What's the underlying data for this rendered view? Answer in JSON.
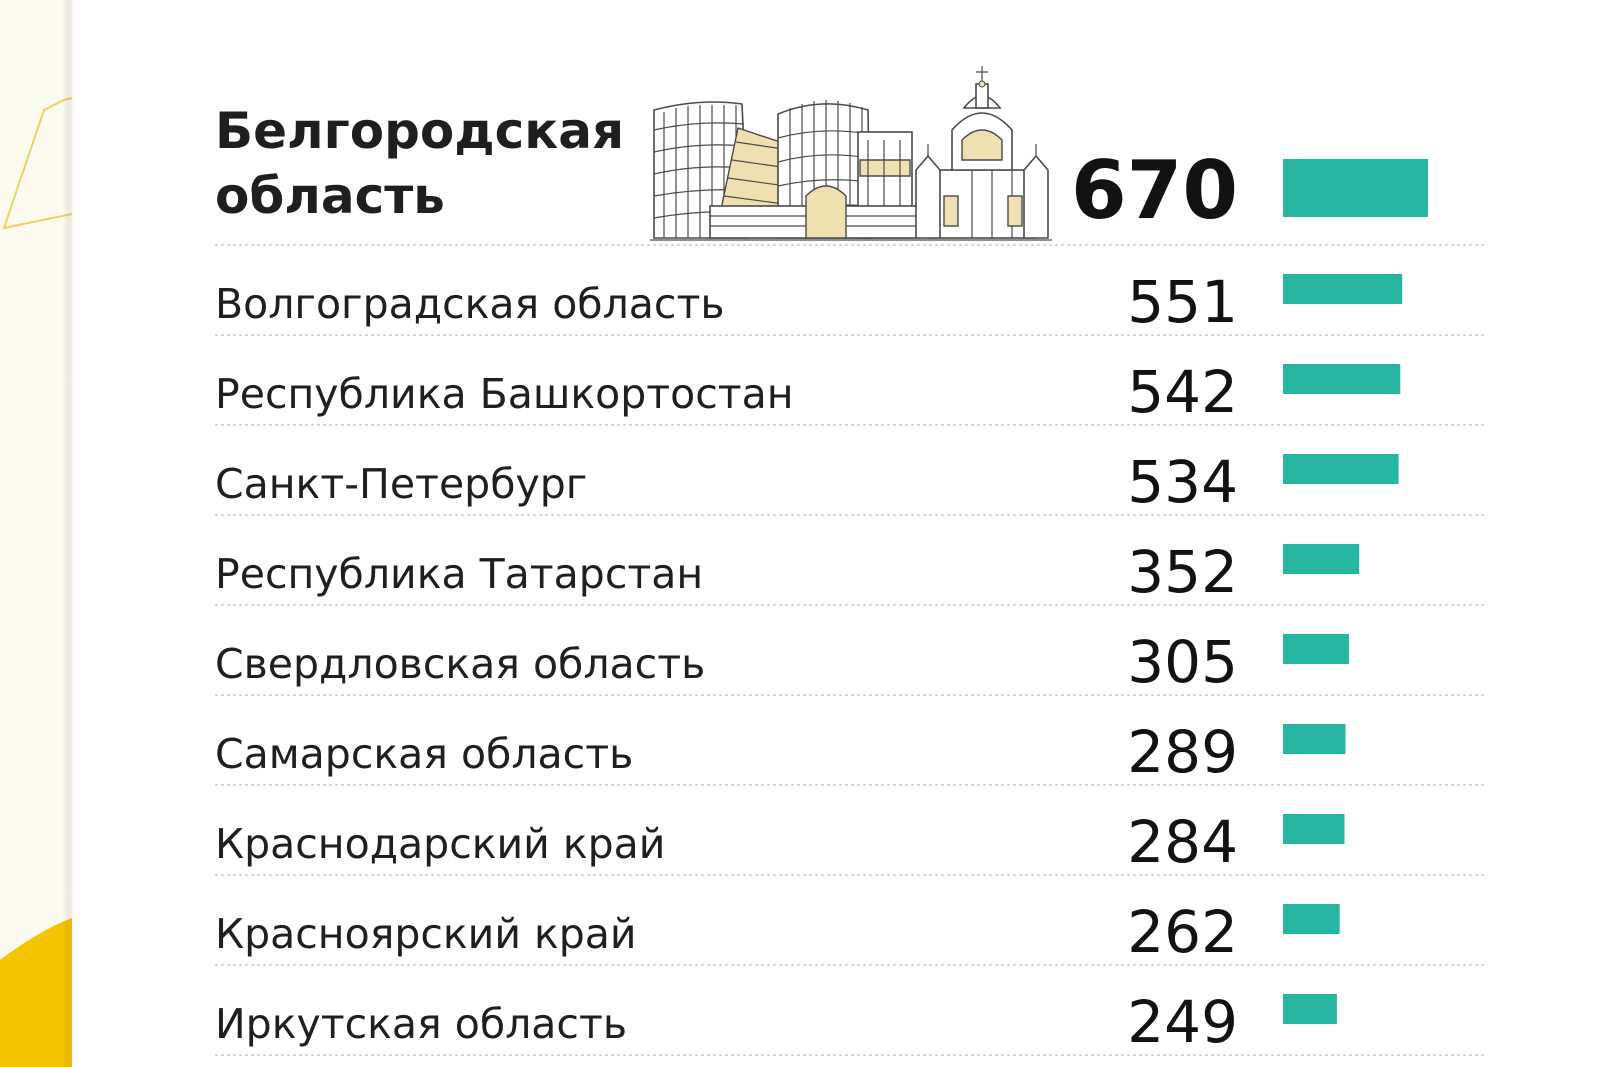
{
  "colors": {
    "bar": "#26b6a2",
    "text": "#1f1f1f",
    "value": "#121212",
    "separator": "#d7d7d7",
    "left_strip": "#fdfaf0",
    "accent_yellow": "#f5c400"
  },
  "icons": {
    "skyline": "city-skyline-illustration"
  },
  "chart_data": {
    "type": "bar",
    "orientation": "horizontal",
    "categories": [
      "Белгородская область",
      "Волгоградская область",
      "Республика Башкортостан",
      "Санкт-Петербург",
      "Республика Татарстан",
      "Свердловская область",
      "Самарская область",
      "Краснодарский край",
      "Красноярский край",
      "Иркутская область"
    ],
    "values": [
      670,
      551,
      542,
      534,
      352,
      305,
      289,
      284,
      262,
      249
    ],
    "highlight_index": 0,
    "data_labels": true,
    "grid": false,
    "legend": "none"
  }
}
